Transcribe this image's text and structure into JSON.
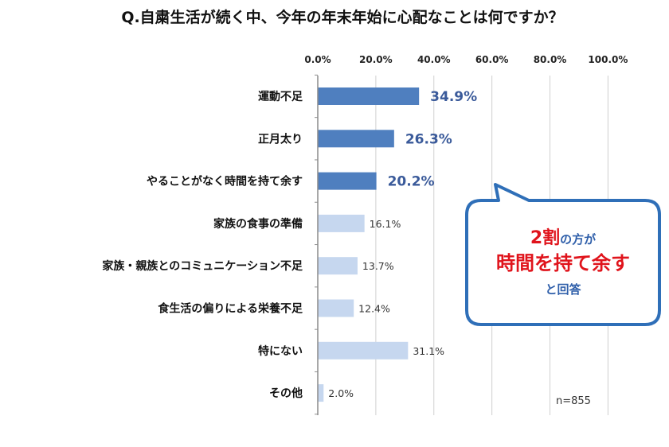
{
  "chart_data": {
    "type": "bar",
    "orientation": "horizontal",
    "title": "Q.自粛生活が続く中、今年の年末年始に心配なことは何ですか？",
    "categories": [
      "運動不足",
      "正月太り",
      "やることがなく時間を持て余す",
      "家族の食事の準備",
      "家族・親族とのコミュニケーション不足",
      "食生活の偏りによる栄養不足",
      "特にない",
      "その他"
    ],
    "values": [
      34.9,
      26.3,
      20.2,
      16.1,
      13.7,
      12.4,
      31.1,
      2.0
    ],
    "value_labels": [
      "34.9%",
      "26.3%",
      "20.2%",
      "16.1%",
      "13.7%",
      "12.4%",
      "31.1%",
      "2.0%"
    ],
    "highlighted_count": 3,
    "xlim": [
      0,
      100
    ],
    "x_ticks": [
      "0.0%",
      "20.0%",
      "40.0%",
      "60.0%",
      "80.0%",
      "100.0%"
    ],
    "grid": true,
    "sample_size": "n=855",
    "colors": {
      "highlight": "#4f7fbf",
      "normal": "#c6d7ef",
      "grid": "#d0d0d0",
      "axis": "#8c8c8c"
    }
  },
  "callout": {
    "line1_big": "2割",
    "line1_small": "の方が",
    "line2": "時間を持て余す",
    "line3": "と回答",
    "border_color": "#2f6fb8",
    "big_color": "#e0141c",
    "small_color": "#2f5faa"
  }
}
